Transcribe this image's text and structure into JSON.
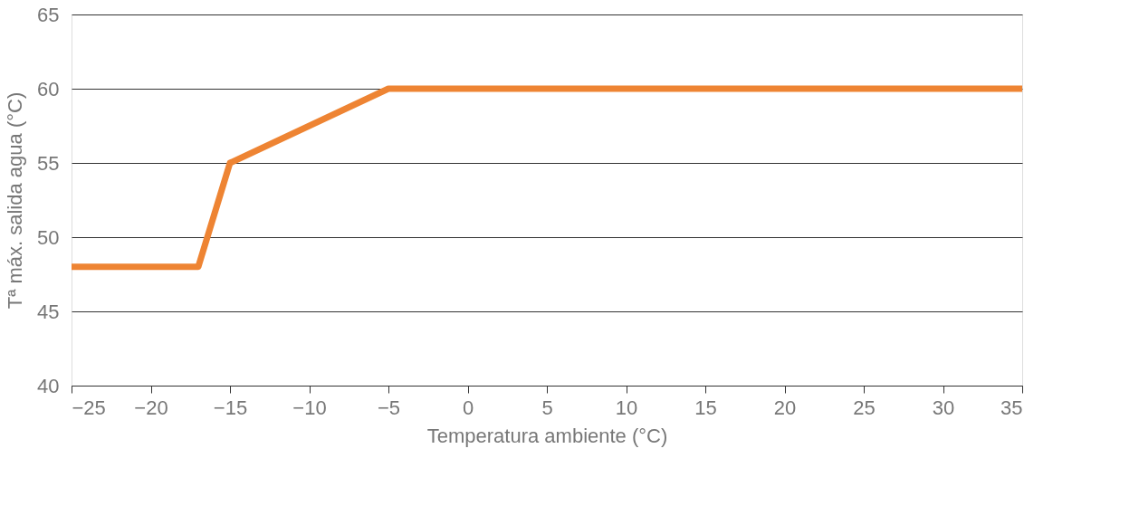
{
  "chart_data": {
    "type": "line",
    "xlabel": "Temperatura ambiente (°C)",
    "ylabel": "Tª máx. salida agua (°C)",
    "x": [
      -25,
      -17,
      -15,
      -5,
      35
    ],
    "series": [
      {
        "color": "#ee8433",
        "values": [
          48,
          48,
          55,
          60,
          60
        ]
      }
    ],
    "xlim": [
      -25,
      35
    ],
    "xticks": [
      -25,
      -20,
      -15,
      -10,
      -5,
      0,
      5,
      10,
      15,
      20,
      25,
      30,
      35
    ],
    "ylim": [
      40,
      65
    ],
    "yticks": [
      40,
      45,
      50,
      55,
      60,
      65
    ],
    "grid": "y",
    "legend": false,
    "marker": "none",
    "line_style": "solid"
  }
}
